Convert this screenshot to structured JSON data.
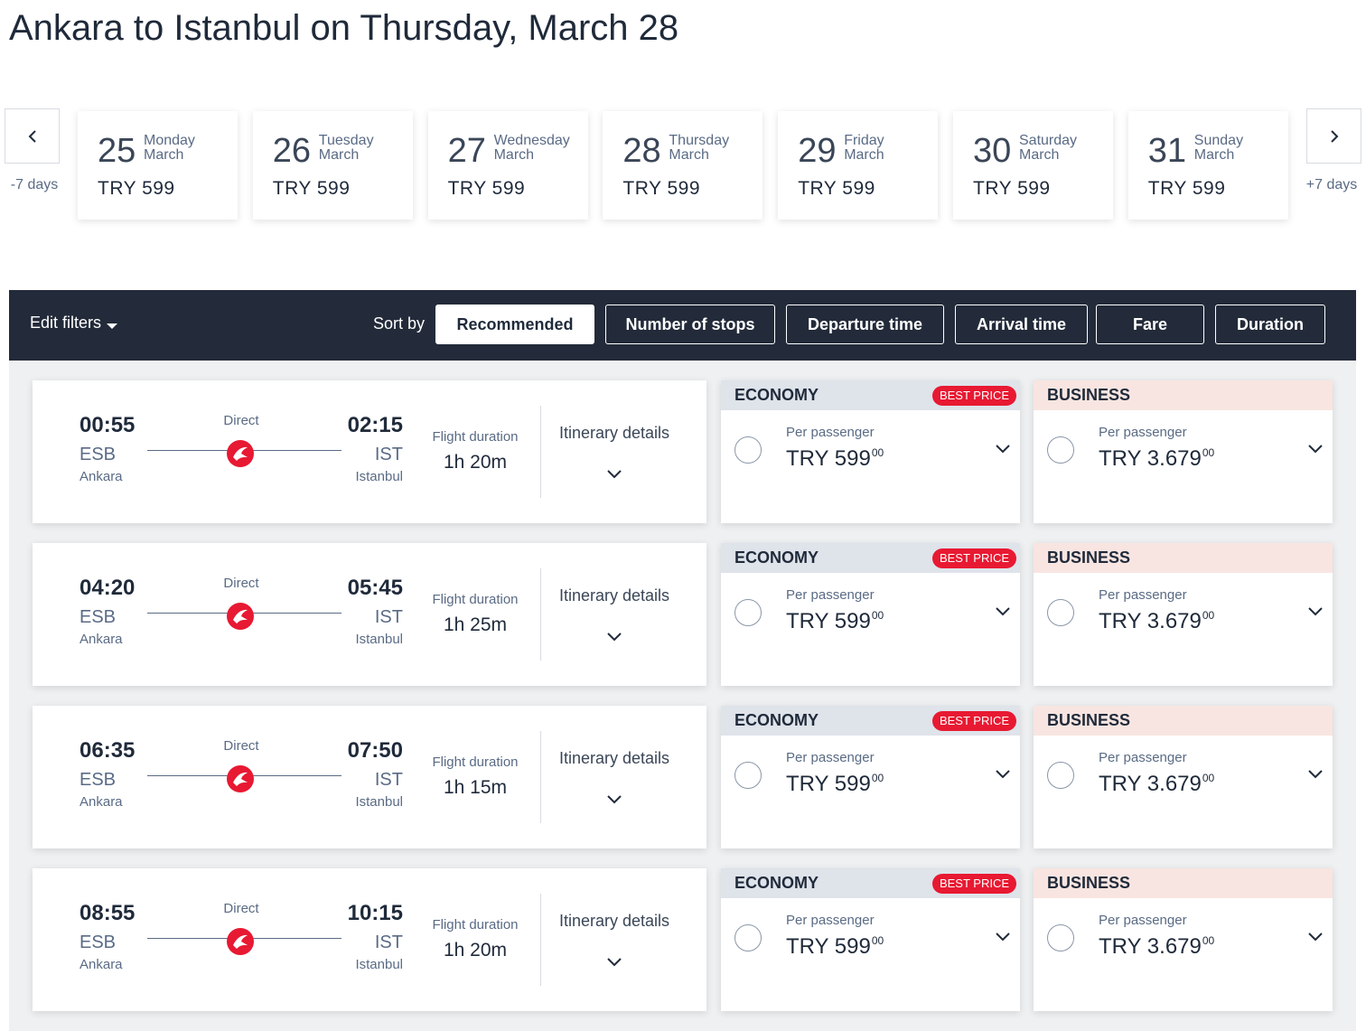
{
  "header": {
    "title": "Ankara to Istanbul on Thursday, March 28"
  },
  "date_nav": {
    "prev": "-7 days",
    "next": "+7 days",
    "days": [
      {
        "day": "25",
        "weekday": "Monday",
        "month": "March",
        "price": "TRY 599"
      },
      {
        "day": "26",
        "weekday": "Tuesday",
        "month": "March",
        "price": "TRY 599"
      },
      {
        "day": "27",
        "weekday": "Wednesday",
        "month": "March",
        "price": "TRY 599"
      },
      {
        "day": "28",
        "weekday": "Thursday",
        "month": "March",
        "price": "TRY 599"
      },
      {
        "day": "29",
        "weekday": "Friday",
        "month": "March",
        "price": "TRY 599"
      },
      {
        "day": "30",
        "weekday": "Saturday",
        "month": "March",
        "price": "TRY 599"
      },
      {
        "day": "31",
        "weekday": "Sunday",
        "month": "March",
        "price": "TRY 599"
      }
    ]
  },
  "toolbar": {
    "edit_filters": "Edit filters",
    "sort_label": "Sort by",
    "sort_options": [
      "Recommended",
      "Number of stops",
      "Departure time",
      "Arrival time",
      "Fare",
      "Duration"
    ]
  },
  "flights": [
    {
      "departure_time": "00:55",
      "departure_code": "ESB",
      "departure_city": "Ankara",
      "stops": "Direct",
      "arrival_time": "02:15",
      "arrival_code": "IST",
      "arrival_city": "Istanbul",
      "duration_label": "Flight duration",
      "duration": "1h 20m",
      "details": "Itinerary details",
      "economy": {
        "class": "ECONOMY",
        "badge": "BEST PRICE",
        "per": "Per passenger",
        "price": "TRY 599",
        "cents": "00"
      },
      "business": {
        "class": "BUSINESS",
        "per": "Per passenger",
        "price": "TRY 3.679",
        "cents": "00"
      }
    },
    {
      "departure_time": "04:20",
      "departure_code": "ESB",
      "departure_city": "Ankara",
      "stops": "Direct",
      "arrival_time": "05:45",
      "arrival_code": "IST",
      "arrival_city": "Istanbul",
      "duration_label": "Flight duration",
      "duration": "1h 25m",
      "details": "Itinerary details",
      "economy": {
        "class": "ECONOMY",
        "badge": "BEST PRICE",
        "per": "Per passenger",
        "price": "TRY 599",
        "cents": "00"
      },
      "business": {
        "class": "BUSINESS",
        "per": "Per passenger",
        "price": "TRY 3.679",
        "cents": "00"
      }
    },
    {
      "departure_time": "06:35",
      "departure_code": "ESB",
      "departure_city": "Ankara",
      "stops": "Direct",
      "arrival_time": "07:50",
      "arrival_code": "IST",
      "arrival_city": "Istanbul",
      "duration_label": "Flight duration",
      "duration": "1h 15m",
      "details": "Itinerary details",
      "economy": {
        "class": "ECONOMY",
        "badge": "BEST PRICE",
        "per": "Per passenger",
        "price": "TRY 599",
        "cents": "00"
      },
      "business": {
        "class": "BUSINESS",
        "per": "Per passenger",
        "price": "TRY 3.679",
        "cents": "00"
      }
    },
    {
      "departure_time": "08:55",
      "departure_code": "ESB",
      "departure_city": "Ankara",
      "stops": "Direct",
      "arrival_time": "10:15",
      "arrival_code": "IST",
      "arrival_city": "Istanbul",
      "duration_label": "Flight duration",
      "duration": "1h 20m",
      "details": "Itinerary details",
      "economy": {
        "class": "ECONOMY",
        "badge": "BEST PRICE",
        "per": "Per passenger",
        "price": "TRY 599",
        "cents": "00"
      },
      "business": {
        "class": "BUSINESS",
        "per": "Per passenger",
        "price": "TRY 3.679",
        "cents": "00"
      }
    }
  ]
}
